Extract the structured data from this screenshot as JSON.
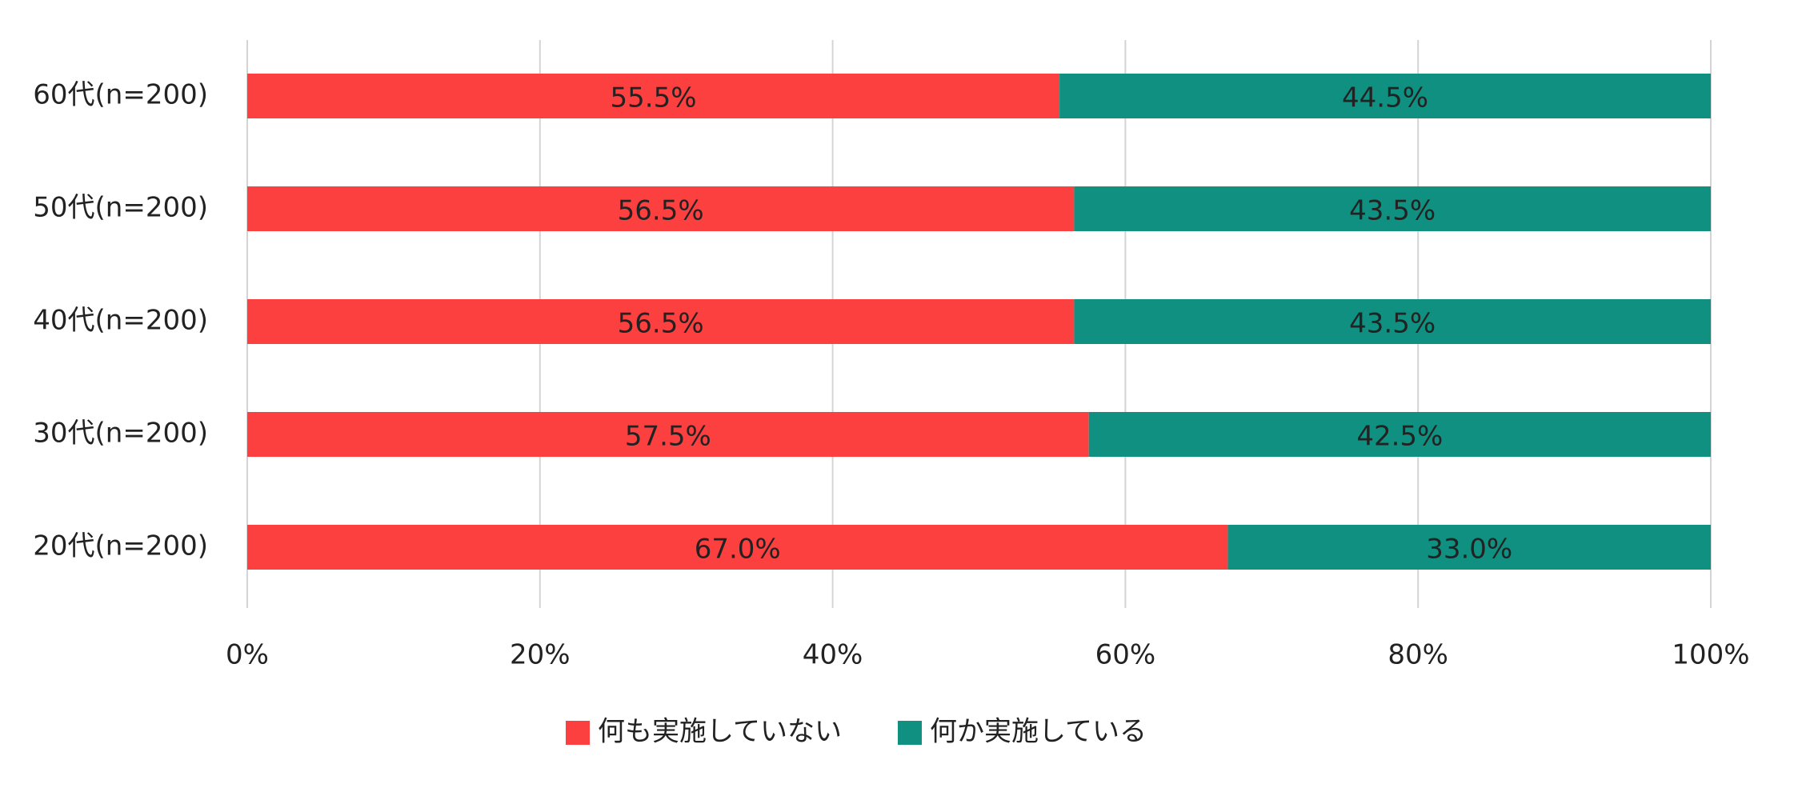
{
  "chart_data": {
    "type": "bar",
    "orientation": "horizontal",
    "stacked": true,
    "categories": [
      "60代(n=200)",
      "50代(n=200)",
      "40代(n=200)",
      "30代(n=200)",
      "20代(n=200)"
    ],
    "series": [
      {
        "name": "何も実施していない",
        "color": "#fc3f3f",
        "values": [
          55.5,
          56.5,
          56.5,
          57.5,
          67.0
        ],
        "value_labels": [
          "55.5%",
          "56.5%",
          "56.5%",
          "57.5%",
          "67.0%"
        ]
      },
      {
        "name": "何か実施している",
        "color": "#0f9080",
        "values": [
          44.5,
          43.5,
          43.5,
          42.5,
          33.0
        ],
        "value_labels": [
          "44.5%",
          "43.5%",
          "43.5%",
          "42.5%",
          "33.0%"
        ]
      }
    ],
    "xlim": [
      0,
      100
    ],
    "xticks": [
      {
        "value": 0,
        "label": "0%"
      },
      {
        "value": 20,
        "label": "20%"
      },
      {
        "value": 40,
        "label": "40%"
      },
      {
        "value": 60,
        "label": "60%"
      },
      {
        "value": 80,
        "label": "80%"
      },
      {
        "value": 100,
        "label": "100%"
      }
    ],
    "grid": true,
    "legend": "bottom"
  }
}
